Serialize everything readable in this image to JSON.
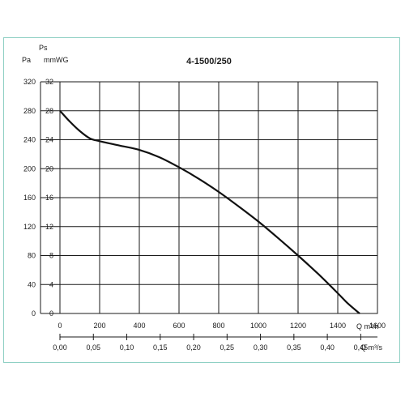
{
  "chart_data": {
    "type": "line",
    "title": "4-1500/250",
    "y_left_unit_top": "Ps",
    "y_left_unit": "Pa",
    "y_right_unit": "mmWG",
    "x_unit": "Q m³/h",
    "x2_unit": "Q m³/s",
    "xlim": [
      0,
      1600
    ],
    "ylim": [
      0,
      320
    ],
    "x_ticks": [
      "0",
      "200",
      "400",
      "600",
      "800",
      "1000",
      "1200",
      "1400",
      "1600"
    ],
    "x2_ticks": [
      "0,00",
      "0,05",
      "0,10",
      "0,15",
      "0,20",
      "0,25",
      "0,30",
      "0,35",
      "0,40",
      "0,45"
    ],
    "y_ticks_pa": [
      "0",
      "40",
      "80",
      "120",
      "160",
      "200",
      "240",
      "280",
      "320"
    ],
    "y_ticks_mmwg": [
      "0",
      "4",
      "8",
      "12",
      "16",
      "20",
      "24",
      "28",
      "32"
    ],
    "grid": true,
    "series": [
      {
        "x": [
          0,
          50,
          100,
          150,
          200,
          300,
          400,
          500,
          600,
          700,
          800,
          900,
          1000,
          1100,
          1200,
          1300,
          1400,
          1450,
          1510
        ],
        "y": [
          280,
          265,
          252,
          242,
          238,
          232,
          226,
          216,
          202,
          186,
          168,
          148,
          127,
          104,
          80,
          55,
          28,
          14,
          0
        ]
      }
    ]
  }
}
